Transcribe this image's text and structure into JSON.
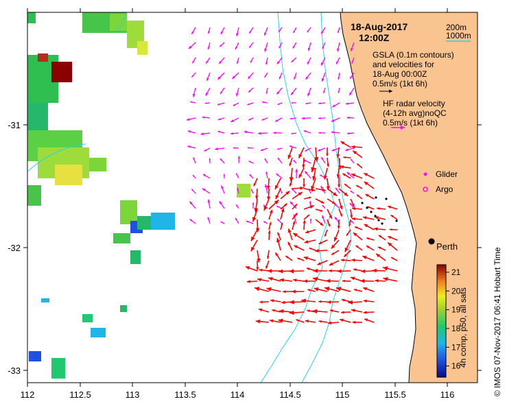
{
  "map": {
    "timestamp_date": "18-Aug-2017",
    "timestamp_time": "12:00Z",
    "depth_legend": {
      "contour_200": "200m",
      "contour_1000": "1000m"
    },
    "gsla_info": [
      "GSLA (0.1m contours)",
      "and velocities for",
      "18-Aug 00:00Z",
      "0.5m/s (1kt 6h)"
    ],
    "hf_info": [
      "HF radar velocity",
      "(4-12h avg)noQC",
      "0.5m/s (1kt 6h)"
    ],
    "glider_label": "Glider",
    "argo_label": "Argo",
    "city_label": "Perth",
    "credit": "© IMOS 07-Nov-2017 06:41 Hobart Time",
    "colorbar_label": "4h comp, p50, all sats",
    "colorbar_ticks": [
      "21",
      "20",
      "19",
      "18",
      "17",
      "16"
    ],
    "colorbar_range": [
      15.4,
      21.4
    ],
    "x_ticks": [
      "112",
      "112.5",
      "113",
      "113.5",
      "114",
      "114.5",
      "115",
      "115.5",
      "116"
    ],
    "y_ticks": [
      "-31",
      "-32",
      "-33"
    ],
    "colors": {
      "land": "#f9c48f",
      "gsla_arrow": "#ff00ff",
      "hf_arrow": "#ff0000",
      "glider": "#ff00ff",
      "contour": "#22d3ee"
    }
  }
}
